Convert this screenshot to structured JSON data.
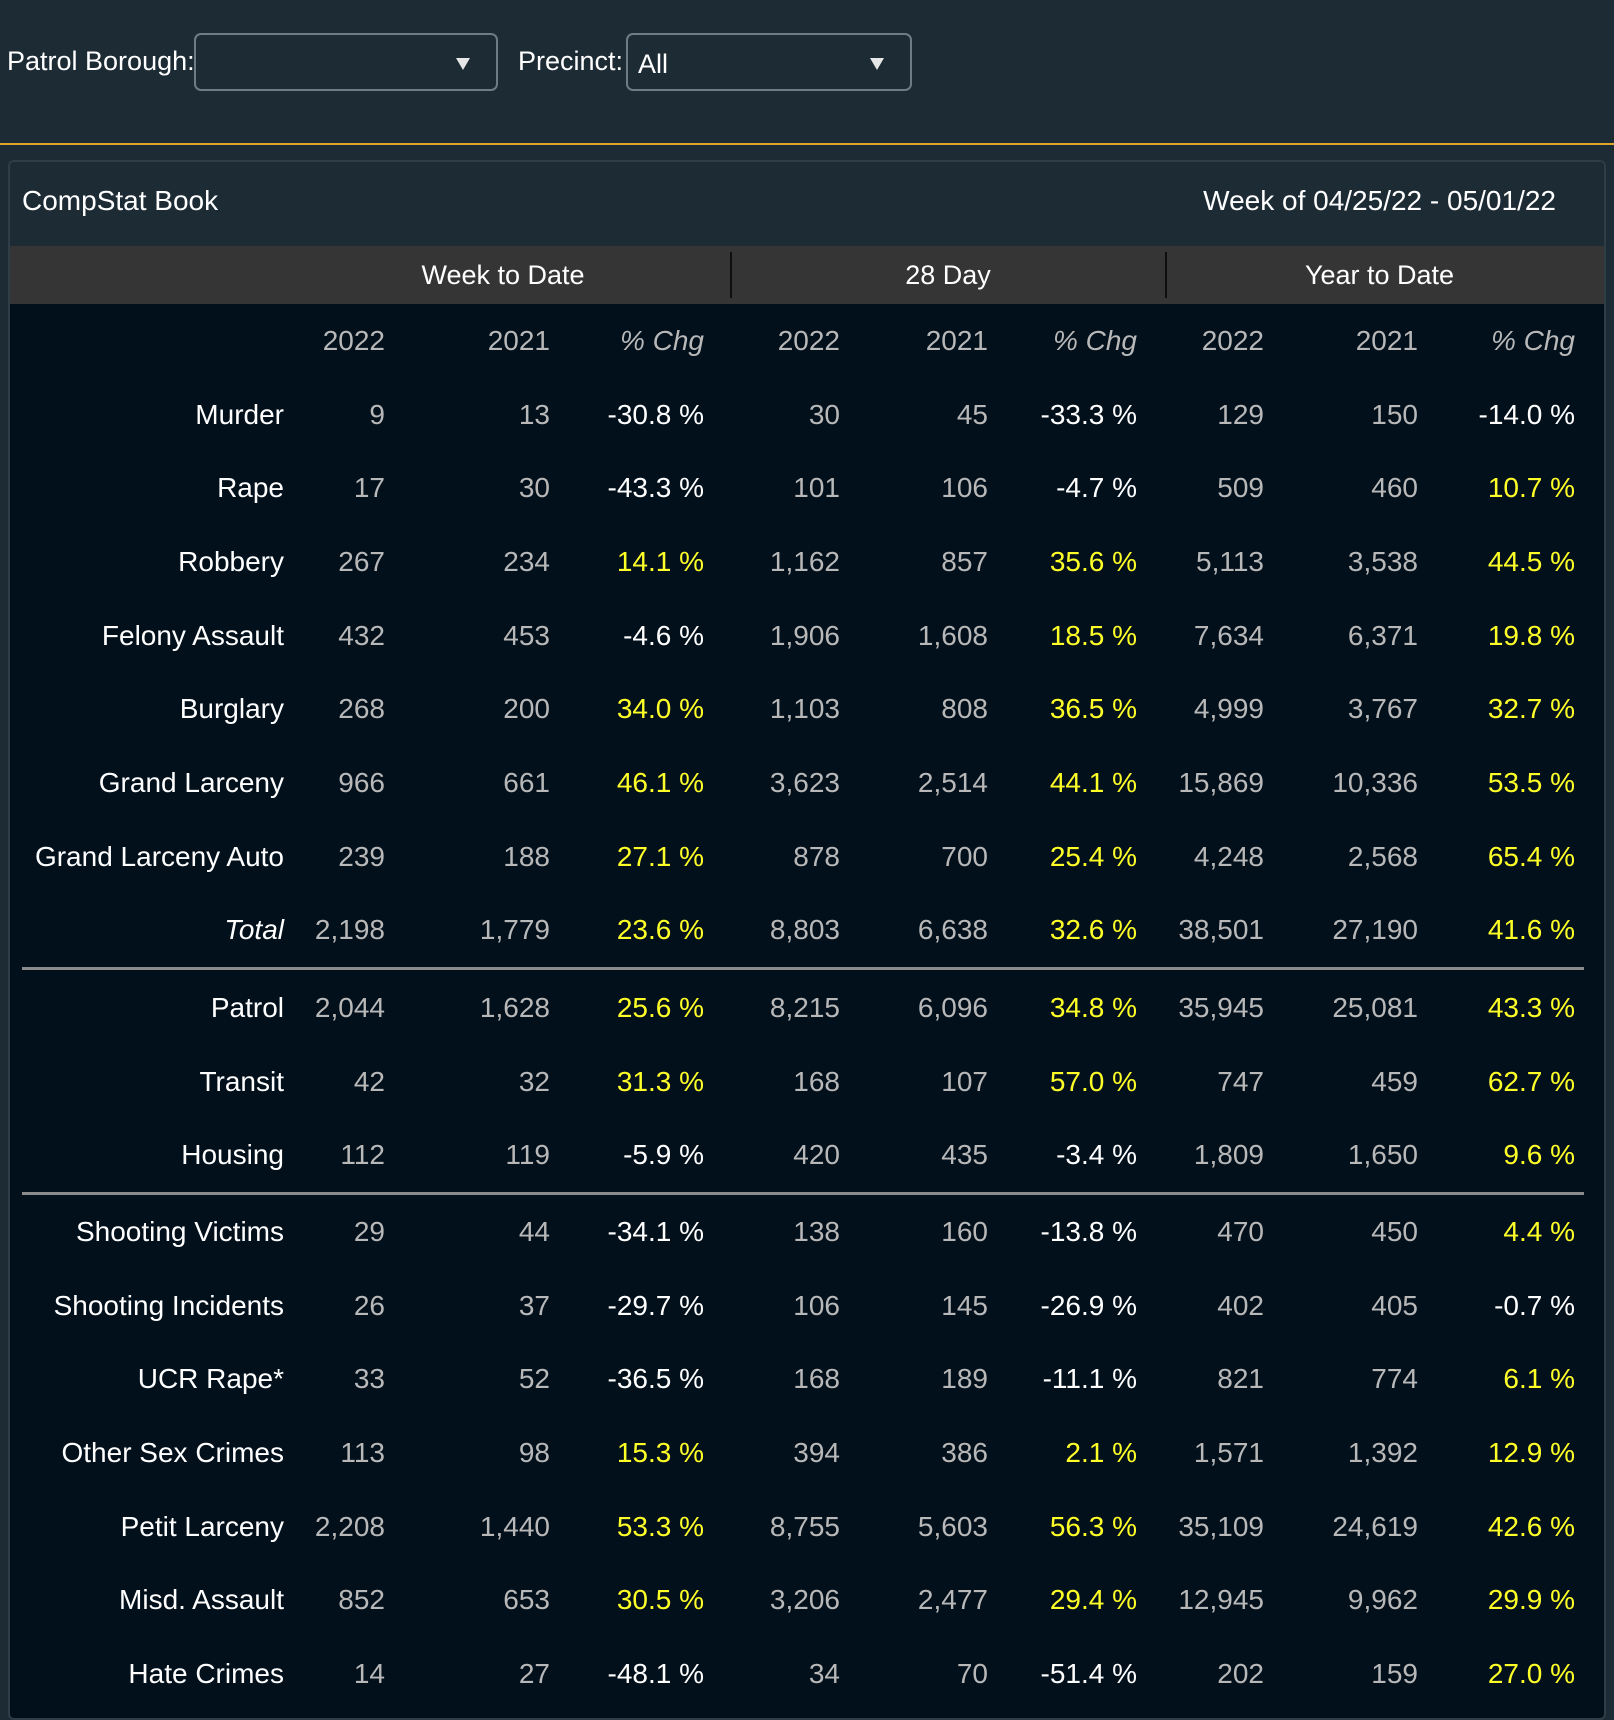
{
  "filters": {
    "patrol_borough": {
      "label": "Patrol Borough:",
      "value": ""
    },
    "precinct": {
      "label": "Precinct:",
      "value": "All"
    }
  },
  "panel": {
    "title": "CompStat Book",
    "week": "Week of 04/25/22 - 05/01/22"
  },
  "groups": [
    "Week to Date",
    "28 Day",
    "Year to Date"
  ],
  "column_headers": [
    "2022",
    "2021",
    "% Chg",
    "2022",
    "2021",
    "% Chg",
    "2022",
    "2021",
    "% Chg"
  ],
  "colors": {
    "positive_change": "#ffff28",
    "negative_change": "#ffffff",
    "accent_border": "#e0a526"
  },
  "sections": [
    {
      "rows": [
        {
          "label": "Murder",
          "values": [
            "9",
            "13",
            "-30.8 %",
            "30",
            "45",
            "-33.3 %",
            "129",
            "150",
            "-14.0 %"
          ]
        },
        {
          "label": "Rape",
          "values": [
            "17",
            "30",
            "-43.3 %",
            "101",
            "106",
            "-4.7 %",
            "509",
            "460",
            "10.7 %"
          ]
        },
        {
          "label": "Robbery",
          "values": [
            "267",
            "234",
            "14.1 %",
            "1,162",
            "857",
            "35.6 %",
            "5,113",
            "3,538",
            "44.5 %"
          ]
        },
        {
          "label": "Felony Assault",
          "values": [
            "432",
            "453",
            "-4.6 %",
            "1,906",
            "1,608",
            "18.5 %",
            "7,634",
            "6,371",
            "19.8 %"
          ]
        },
        {
          "label": "Burglary",
          "values": [
            "268",
            "200",
            "34.0 %",
            "1,103",
            "808",
            "36.5 %",
            "4,999",
            "3,767",
            "32.7 %"
          ]
        },
        {
          "label": "Grand Larceny",
          "values": [
            "966",
            "661",
            "46.1 %",
            "3,623",
            "2,514",
            "44.1 %",
            "15,869",
            "10,336",
            "53.5 %"
          ]
        },
        {
          "label": "Grand Larceny Auto",
          "values": [
            "239",
            "188",
            "27.1 %",
            "878",
            "700",
            "25.4 %",
            "4,248",
            "2,568",
            "65.4 %"
          ]
        },
        {
          "label": "Total",
          "italic": true,
          "values": [
            "2,198",
            "1,779",
            "23.6 %",
            "8,803",
            "6,638",
            "32.6 %",
            "38,501",
            "27,190",
            "41.6 %"
          ]
        }
      ]
    },
    {
      "rows": [
        {
          "label": "Patrol",
          "values": [
            "2,044",
            "1,628",
            "25.6 %",
            "8,215",
            "6,096",
            "34.8 %",
            "35,945",
            "25,081",
            "43.3 %"
          ]
        },
        {
          "label": "Transit",
          "values": [
            "42",
            "32",
            "31.3 %",
            "168",
            "107",
            "57.0 %",
            "747",
            "459",
            "62.7 %"
          ]
        },
        {
          "label": "Housing",
          "values": [
            "112",
            "119",
            "-5.9 %",
            "420",
            "435",
            "-3.4 %",
            "1,809",
            "1,650",
            "9.6 %"
          ]
        }
      ]
    },
    {
      "rows": [
        {
          "label": "Shooting Victims",
          "values": [
            "29",
            "44",
            "-34.1 %",
            "138",
            "160",
            "-13.8 %",
            "470",
            "450",
            "4.4 %"
          ]
        },
        {
          "label": "Shooting Incidents",
          "values": [
            "26",
            "37",
            "-29.7 %",
            "106",
            "145",
            "-26.9 %",
            "402",
            "405",
            "-0.7 %"
          ]
        },
        {
          "label": "UCR Rape*",
          "values": [
            "33",
            "52",
            "-36.5 %",
            "168",
            "189",
            "-11.1 %",
            "821",
            "774",
            "6.1 %"
          ]
        },
        {
          "label": "Other Sex Crimes",
          "values": [
            "113",
            "98",
            "15.3 %",
            "394",
            "386",
            "2.1 %",
            "1,571",
            "1,392",
            "12.9 %"
          ]
        },
        {
          "label": "Petit Larceny",
          "values": [
            "2,208",
            "1,440",
            "53.3 %",
            "8,755",
            "5,603",
            "56.3 %",
            "35,109",
            "24,619",
            "42.6 %"
          ]
        },
        {
          "label": "Misd. Assault",
          "values": [
            "852",
            "653",
            "30.5 %",
            "3,206",
            "2,477",
            "29.4 %",
            "12,945",
            "9,962",
            "29.9 %"
          ]
        },
        {
          "label": "Hate Crimes",
          "values": [
            "14",
            "27",
            "-48.1 %",
            "34",
            "70",
            "-51.4 %",
            "202",
            "159",
            "27.0 %"
          ]
        }
      ]
    }
  ]
}
